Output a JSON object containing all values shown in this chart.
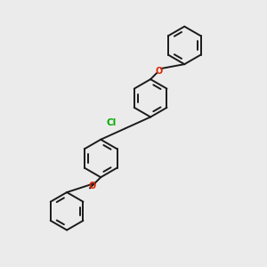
{
  "background_color": "#ebebeb",
  "line_color": "#1a1a1a",
  "line_width": 1.4,
  "cl_color": "#00aa00",
  "o_color": "#dd2200",
  "font_size_cl": 7.5,
  "font_size_o": 7.0,
  "figsize": [
    3.0,
    3.0
  ],
  "dpi": 100,
  "xlim": [
    0,
    10
  ],
  "ylim": [
    0,
    10
  ]
}
